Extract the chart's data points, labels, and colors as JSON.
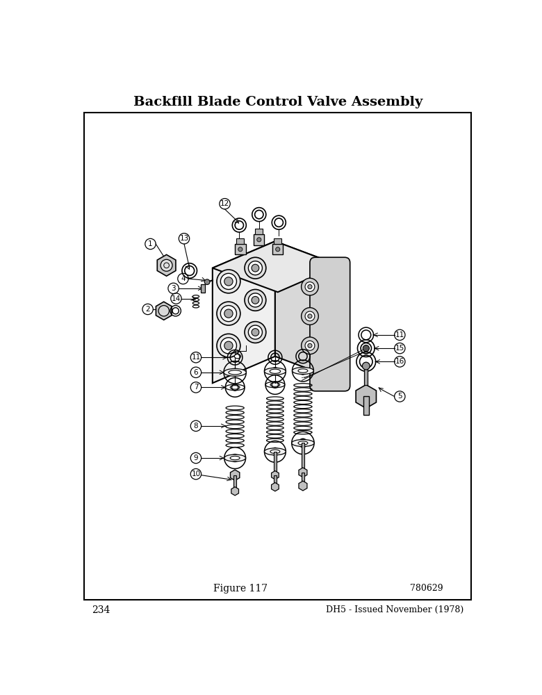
{
  "title": "Backfill Blade Control Valve Assembly",
  "figure_label": "Figure 117",
  "figure_number": "780629",
  "page_number": "234",
  "footer_right": "DH5 - Issued November (1978)",
  "bg_color": "#ffffff",
  "border_color": "#000000",
  "line_color": "#000000",
  "text_color": "#000000",
  "title_fontsize": 14,
  "label_fontsize": 9,
  "footer_fontsize": 9,
  "fig_label_fontsize": 10,
  "page_info_fontsize": 10
}
